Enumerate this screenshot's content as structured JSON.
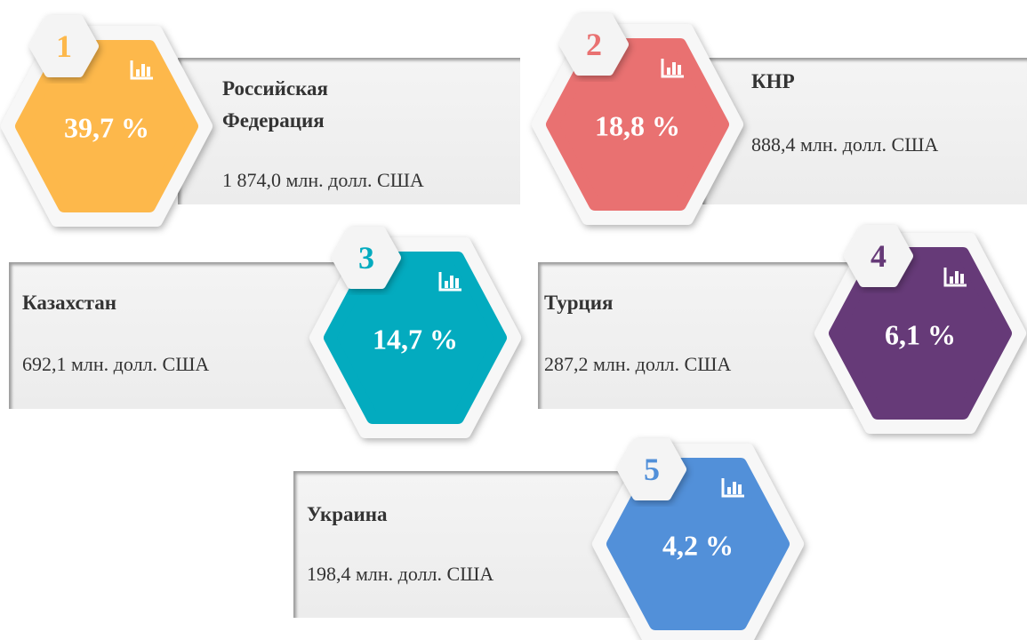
{
  "items": [
    {
      "rank": "1",
      "percent": "39,7 %",
      "name": "Российская Федерация",
      "amount": "1 874,0 млн. долл. США",
      "color": "#fdb84b"
    },
    {
      "rank": "2",
      "percent": "18,8 %",
      "name": "КНР",
      "amount": "888,4 млн. долл. США",
      "color": "#e97171"
    },
    {
      "rank": "3",
      "percent": "14,7 %",
      "name": "Казахстан",
      "amount": "692,1 млн. долл. США",
      "color": "#03abbf"
    },
    {
      "rank": "4",
      "percent": "6,1 %",
      "name": "Турция",
      "amount": "287,2 млн. долл. США",
      "color": "#663a78"
    },
    {
      "rank": "5",
      "percent": "4,2 %",
      "name": "Украина",
      "amount": "198,4 млн. долл. США",
      "color": "#5290d9"
    }
  ]
}
